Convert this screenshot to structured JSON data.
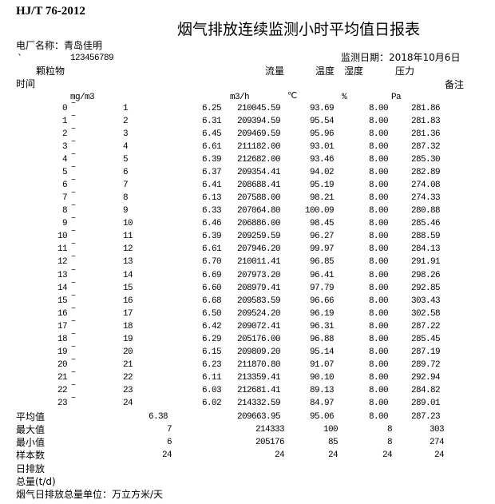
{
  "header": {
    "standard": "HJ/T 76-2012",
    "title": "烟气排放连续监测小时平均值日报表",
    "plant_label": "电厂名称：青岛佳明",
    "backtick": "`",
    "plant_code": "123456789",
    "date_label": "监测日期：2018年10月6日"
  },
  "columns": {
    "particulate": "颗粒物",
    "flow": "流量",
    "temperature": "温度",
    "humidity": "湿度",
    "pressure": "压力",
    "time": "时间",
    "remarks": "备注",
    "unit_particulate": "mg/m3",
    "unit_flow": "m3/h",
    "unit_temperature": "℃",
    "unit_humidity": "%",
    "unit_pressure": "Pa"
  },
  "range_separator": "~",
  "rows": [
    {
      "from": "0",
      "to": "1",
      "particulate": "6.25",
      "flow": "210045.59",
      "temperature": "93.69",
      "humidity": "8.00",
      "pressure": "281.86"
    },
    {
      "from": "1",
      "to": "2",
      "particulate": "6.31",
      "flow": "209394.59",
      "temperature": "95.54",
      "humidity": "8.00",
      "pressure": "281.83"
    },
    {
      "from": "2",
      "to": "3",
      "particulate": "6.45",
      "flow": "209469.59",
      "temperature": "95.96",
      "humidity": "8.00",
      "pressure": "281.36"
    },
    {
      "from": "3",
      "to": "4",
      "particulate": "6.61",
      "flow": "211182.00",
      "temperature": "93.01",
      "humidity": "8.00",
      "pressure": "287.32"
    },
    {
      "from": "4",
      "to": "5",
      "particulate": "6.39",
      "flow": "212682.00",
      "temperature": "93.46",
      "humidity": "8.00",
      "pressure": "285.30"
    },
    {
      "from": "5",
      "to": "6",
      "particulate": "6.37",
      "flow": "209354.41",
      "temperature": "94.02",
      "humidity": "8.00",
      "pressure": "282.89"
    },
    {
      "from": "6",
      "to": "7",
      "particulate": "6.41",
      "flow": "208688.41",
      "temperature": "95.19",
      "humidity": "8.00",
      "pressure": "274.08"
    },
    {
      "from": "7",
      "to": "8",
      "particulate": "6.13",
      "flow": "207588.00",
      "temperature": "98.21",
      "humidity": "8.00",
      "pressure": "274.33"
    },
    {
      "from": "8",
      "to": "9",
      "particulate": "6.33",
      "flow": "207064.80",
      "temperature": "100.09",
      "humidity": "8.00",
      "pressure": "280.88"
    },
    {
      "from": "9",
      "to": "10",
      "particulate": "6.46",
      "flow": "206886.00",
      "temperature": "98.45",
      "humidity": "8.00",
      "pressure": "285.46"
    },
    {
      "from": "10",
      "to": "11",
      "particulate": "6.39",
      "flow": "209259.59",
      "temperature": "96.27",
      "humidity": "8.00",
      "pressure": "288.59"
    },
    {
      "from": "11",
      "to": "12",
      "particulate": "6.61",
      "flow": "207946.20",
      "temperature": "99.97",
      "humidity": "8.00",
      "pressure": "284.13"
    },
    {
      "from": "12",
      "to": "13",
      "particulate": "6.70",
      "flow": "210011.41",
      "temperature": "96.85",
      "humidity": "8.00",
      "pressure": "291.91"
    },
    {
      "from": "13",
      "to": "14",
      "particulate": "6.69",
      "flow": "207973.20",
      "temperature": "96.41",
      "humidity": "8.00",
      "pressure": "298.26"
    },
    {
      "from": "14",
      "to": "15",
      "particulate": "6.60",
      "flow": "208979.41",
      "temperature": "97.79",
      "humidity": "8.00",
      "pressure": "292.85"
    },
    {
      "from": "15",
      "to": "16",
      "particulate": "6.68",
      "flow": "209583.59",
      "temperature": "96.66",
      "humidity": "8.00",
      "pressure": "303.43"
    },
    {
      "from": "16",
      "to": "17",
      "particulate": "6.50",
      "flow": "209524.20",
      "temperature": "96.19",
      "humidity": "8.00",
      "pressure": "302.58"
    },
    {
      "from": "17",
      "to": "18",
      "particulate": "6.42",
      "flow": "209072.41",
      "temperature": "96.31",
      "humidity": "8.00",
      "pressure": "287.22"
    },
    {
      "from": "18",
      "to": "19",
      "particulate": "6.29",
      "flow": "205176.00",
      "temperature": "96.88",
      "humidity": "8.00",
      "pressure": "285.45"
    },
    {
      "from": "19",
      "to": "20",
      "particulate": "6.15",
      "flow": "209809.20",
      "temperature": "95.14",
      "humidity": "8.00",
      "pressure": "287.19"
    },
    {
      "from": "20",
      "to": "21",
      "particulate": "6.23",
      "flow": "211870.80",
      "temperature": "91.07",
      "humidity": "8.00",
      "pressure": "289.72"
    },
    {
      "from": "21",
      "to": "22",
      "particulate": "6.11",
      "flow": "213359.41",
      "temperature": "90.10",
      "humidity": "8.00",
      "pressure": "292.94"
    },
    {
      "from": "22",
      "to": "23",
      "particulate": "6.03",
      "flow": "212681.41",
      "temperature": "89.13",
      "humidity": "8.00",
      "pressure": "284.82"
    },
    {
      "from": "23",
      "to": "24",
      "particulate": "6.02",
      "flow": "214332.59",
      "temperature": "84.97",
      "humidity": "8.00",
      "pressure": "289.01"
    }
  ],
  "summary": [
    {
      "label": "平均值",
      "particulate": "6.38",
      "flow": "209663.95",
      "temperature": "95.06",
      "humidity": "8.00",
      "pressure": "287.23",
      "integer": false
    },
    {
      "label": "最大值",
      "particulate": "7",
      "flow": "214333",
      "temperature": "100",
      "humidity": "8",
      "pressure": "303",
      "integer": true
    },
    {
      "label": "最小值",
      "particulate": "6",
      "flow": "205176",
      "temperature": "85",
      "humidity": "8",
      "pressure": "274",
      "integer": true
    },
    {
      "label": "样本数",
      "particulate": "24",
      "flow": "24",
      "temperature": "24",
      "humidity": "24",
      "pressure": "24",
      "integer": true
    }
  ],
  "footer": {
    "daily_emission": "日排放",
    "total": "总量(t/d)",
    "unit_note": "烟气日排放总量单位：万立方米/天"
  }
}
